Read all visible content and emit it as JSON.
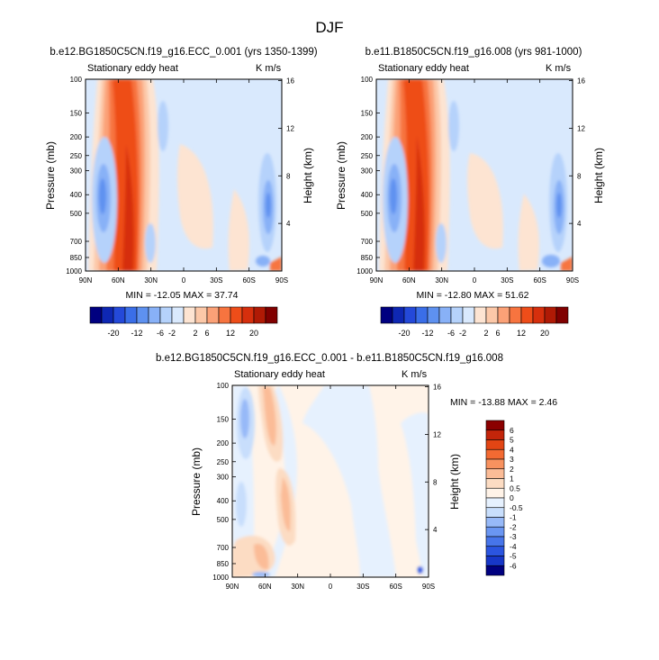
{
  "figure": {
    "title": "DJF"
  },
  "palettes": {
    "top": [
      "#000080",
      "#0e27b3",
      "#2449d9",
      "#3a6ee8",
      "#5e91f0",
      "#88b1f7",
      "#b5d2fb",
      "#d9e9fd",
      "#fde4d2",
      "#fcc8a8",
      "#fba177",
      "#f7743f",
      "#ee4d19",
      "#d62f0d",
      "#b01a05",
      "#800000"
    ],
    "diff": [
      "#000080",
      "#1737c8",
      "#2b55e0",
      "#4775ea",
      "#6a96f2",
      "#97b9f8",
      "#c8defc",
      "#e6f1fe",
      "#fff3e8",
      "#fcdcc3",
      "#fbbc97",
      "#f8925f",
      "#f36a32",
      "#e24514",
      "#c3250a",
      "#8b0000"
    ]
  },
  "colorbar_top": {
    "labels": [
      "-20",
      "-12",
      "-6",
      "-2",
      "2",
      "6",
      "12",
      "20"
    ]
  },
  "colorbar_diff": {
    "labels": [
      "6",
      "5",
      "4",
      "3",
      "2",
      "1",
      "0.5",
      "0",
      "-0.5",
      "-1",
      "-2",
      "-3",
      "-4",
      "-5",
      "-6"
    ]
  },
  "chart_data": [
    {
      "type": "heatmap",
      "title": "b.e12.BG1850C5CN.f19_g16.ECC_0.001 (yrs 1350-1399)",
      "subtitle_left": "Stationary eddy heat",
      "units": "K m/s",
      "ylabel": "Pressure (mb)",
      "y2label": "Height (km)",
      "x_ticks": [
        "90N",
        "60N",
        "30N",
        "0",
        "30S",
        "60S",
        "90S"
      ],
      "y_ticks": [
        "100",
        "150",
        "200",
        "250",
        "300",
        "400",
        "500",
        "700",
        "850",
        "1000"
      ],
      "y2_ticks": [
        "16",
        "12",
        "8",
        "4"
      ],
      "stats": "MIN = -12.05  MAX = 37.74",
      "min": -12.05,
      "max": 37.74,
      "xlim": [
        "90N",
        "90S"
      ],
      "ylim": [
        1000,
        100
      ],
      "features": [
        {
          "region": "warm core",
          "lat_center": 50,
          "value": 20
        },
        {
          "region": "cold band",
          "lat_center": 75,
          "value": -8
        },
        {
          "region": "cold band",
          "lat_center": -75,
          "value": -8
        }
      ]
    },
    {
      "type": "heatmap",
      "title": "b.e11.B1850C5CN.f19_g16.008 (yrs 981-1000)",
      "subtitle_left": "Stationary eddy heat",
      "units": "K m/s",
      "ylabel": "Pressure (mb)",
      "y2label": "Height (km)",
      "x_ticks": [
        "90N",
        "60N",
        "30N",
        "0",
        "30S",
        "60S",
        "90S"
      ],
      "y_ticks": [
        "100",
        "150",
        "200",
        "250",
        "300",
        "400",
        "500",
        "700",
        "850",
        "1000"
      ],
      "y2_ticks": [
        "16",
        "12",
        "8",
        "4"
      ],
      "stats": "MIN = -12.80  MAX =  51.62",
      "min": -12.8,
      "max": 51.62,
      "xlim": [
        "90N",
        "90S"
      ],
      "ylim": [
        1000,
        100
      ],
      "features": [
        {
          "region": "warm core",
          "lat_center": 50,
          "value": 20
        },
        {
          "region": "cold band",
          "lat_center": 75,
          "value": -8
        },
        {
          "region": "cold band",
          "lat_center": -75,
          "value": -8
        }
      ]
    },
    {
      "type": "heatmap",
      "title": "b.e12.BG1850C5CN.f19_g16.ECC_0.001 - b.e11.B1850C5CN.f19_g16.008",
      "subtitle_left": "Stationary eddy heat",
      "units": "K m/s",
      "ylabel": "Pressure (mb)",
      "y2label": "Height (km)",
      "x_ticks": [
        "90N",
        "60N",
        "30N",
        "0",
        "30S",
        "60S",
        "90S"
      ],
      "y_ticks": [
        "100",
        "150",
        "200",
        "250",
        "300",
        "400",
        "500",
        "700",
        "850",
        "1000"
      ],
      "y2_ticks": [
        "16",
        "12",
        "8",
        "4"
      ],
      "stats": "MIN = -13.88  MAX =   2.46",
      "min": -13.88,
      "max": 2.46,
      "xlim": [
        "90N",
        "90S"
      ],
      "ylim": [
        1000,
        100
      ]
    }
  ]
}
